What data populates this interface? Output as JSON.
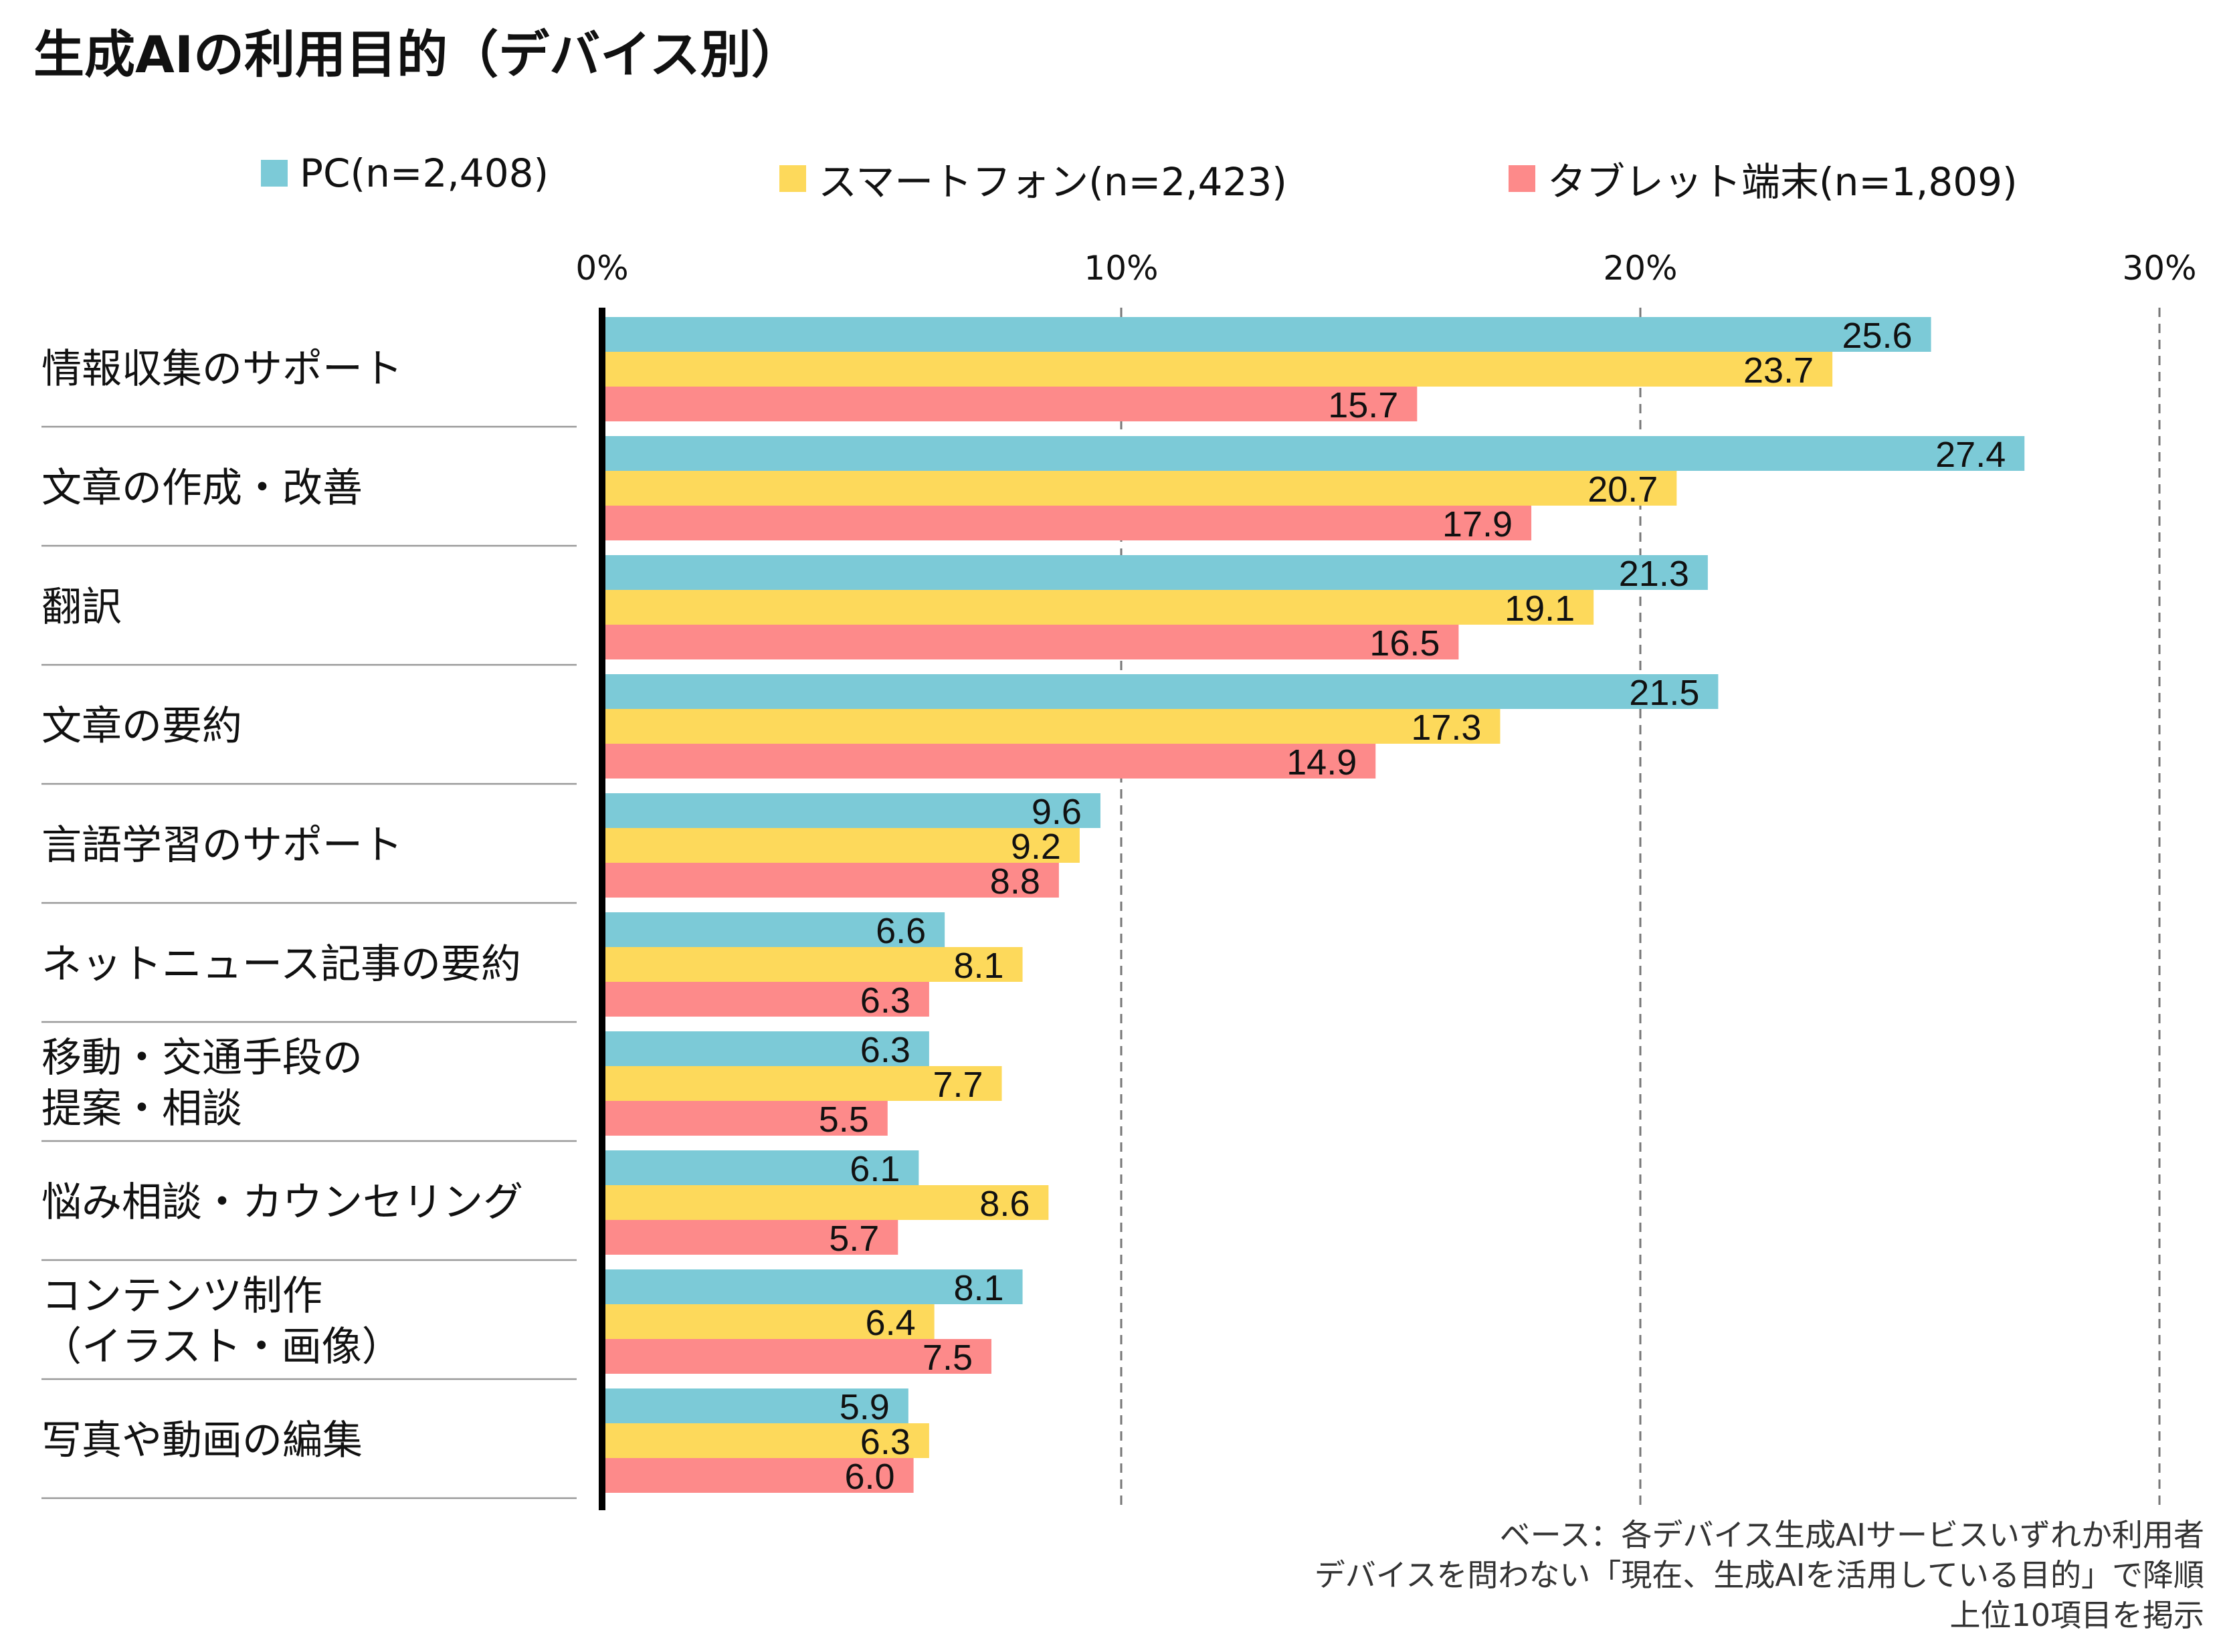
{
  "title": "生成AIの利用目的（デバイス別）",
  "legend": [
    {
      "label": "PC(n=2,408)",
      "color": "#7ccad7"
    },
    {
      "label": "スマートフォン(n=2,423)",
      "color": "#fdd95b"
    },
    {
      "label": "タブレット端末(n=1,809)",
      "color": "#fd8a8a"
    }
  ],
  "notes": [
    "ベース：各デバイス生成AIサービスいずれか利用者",
    "デバイスを問わない「現在、生成AIを活用している目的」で降順",
    "上位10項目を掲示"
  ],
  "chart_data": {
    "type": "bar",
    "orientation": "horizontal",
    "title": "生成AIの利用目的（デバイス別）",
    "categories": [
      [
        "情報収集のサポート"
      ],
      [
        "文章の作成・改善"
      ],
      [
        "翻訳"
      ],
      [
        "文章の要約"
      ],
      [
        "言語学習のサポート"
      ],
      [
        "ネットニュース記事の要約"
      ],
      [
        "移動・交通手段の",
        "提案・相談"
      ],
      [
        "悩み相談・カウンセリング"
      ],
      [
        "コンテンツ制作",
        "（イラスト・画像）"
      ],
      [
        "写真や動画の編集"
      ]
    ],
    "series": [
      {
        "name": "PC(n=2,408)",
        "color": "#7ccad7",
        "values": [
          25.6,
          27.4,
          21.3,
          21.5,
          9.6,
          6.6,
          6.3,
          6.1,
          8.1,
          5.9
        ]
      },
      {
        "name": "スマートフォン(n=2,423)",
        "color": "#fdd95b",
        "values": [
          23.7,
          20.7,
          19.1,
          17.3,
          9.2,
          8.1,
          7.7,
          8.6,
          6.4,
          6.3
        ]
      },
      {
        "name": "タブレット端末(n=1,809)",
        "color": "#fd8a8a",
        "values": [
          15.7,
          17.9,
          16.5,
          14.9,
          8.8,
          6.3,
          5.5,
          5.7,
          7.5,
          6.0
        ]
      }
    ],
    "xlim": [
      0,
      30
    ],
    "xticks": [
      "0%",
      "10%",
      "20%",
      "30%"
    ],
    "grid": true,
    "legend_position": "top"
  }
}
